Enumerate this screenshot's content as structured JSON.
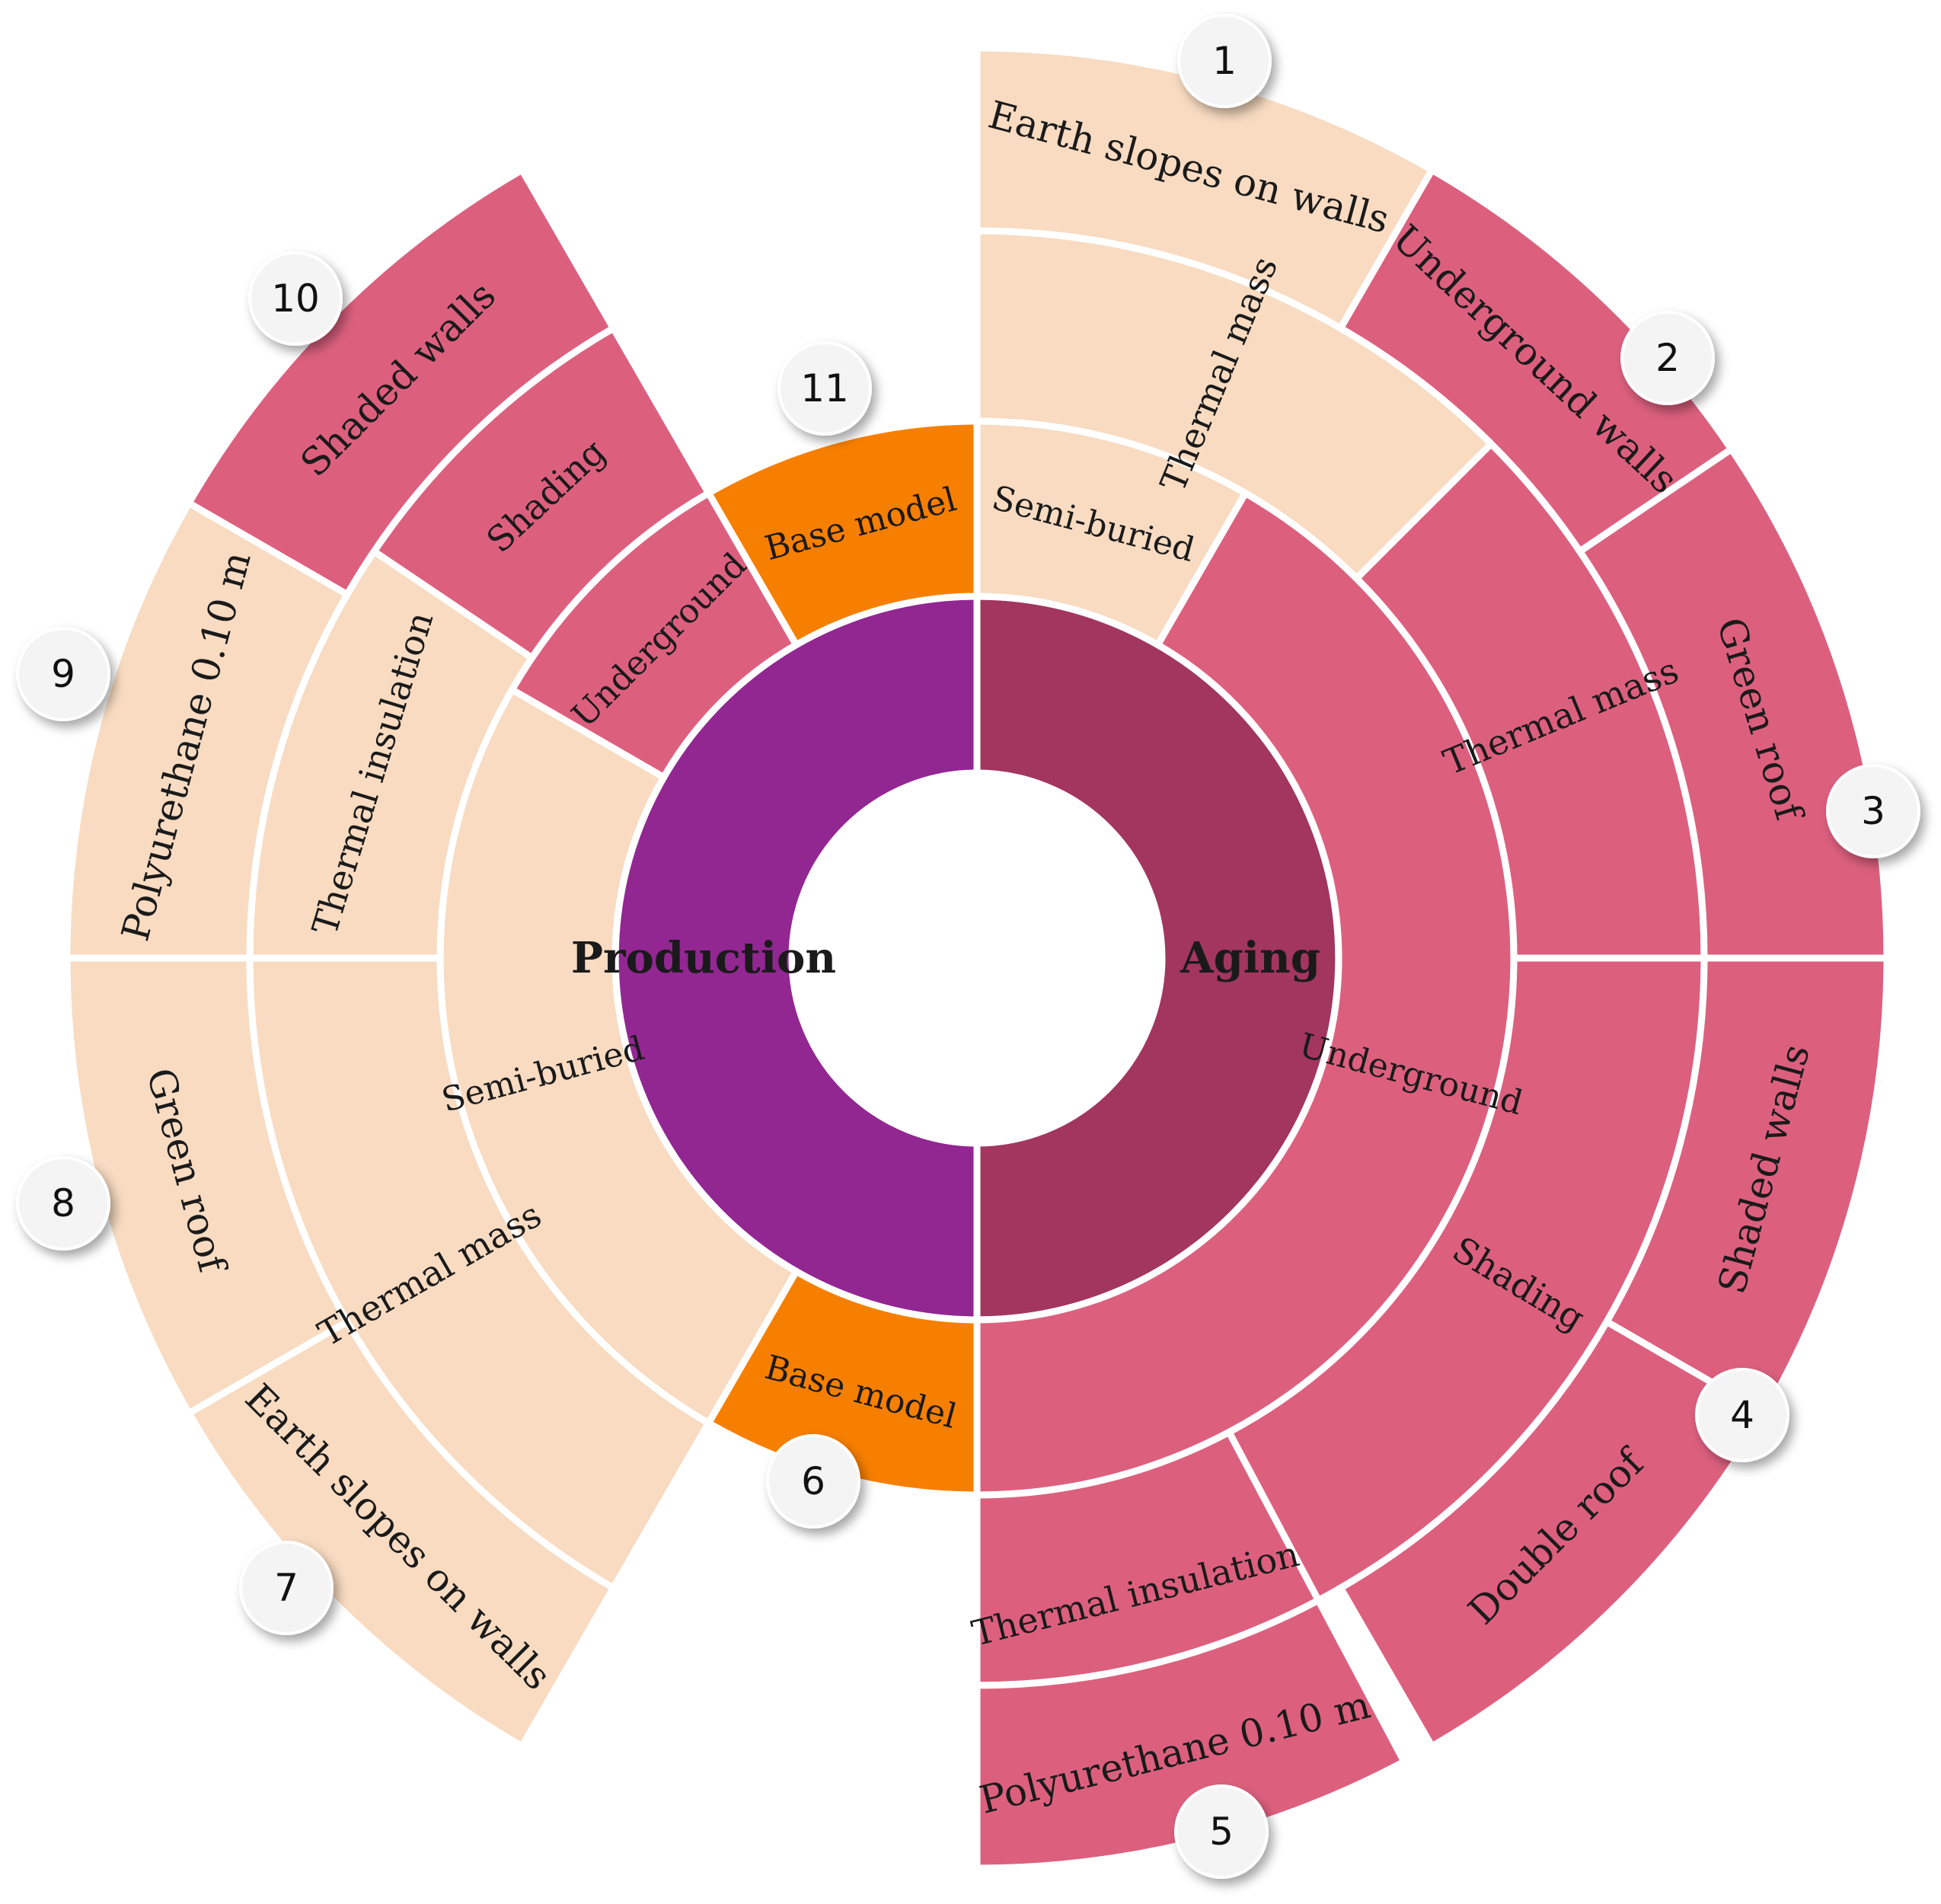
{
  "colors": {
    "production": "#922792",
    "aging": "#a2365f",
    "base": "#f77f00",
    "pink": "#dc607e",
    "peach": "#f8dbc1"
  },
  "rings": [
    [
      {
        "label": "Production",
        "color": "production",
        "bold": true
      },
      {
        "label": "Aging",
        "color": "aging",
        "bold": true
      }
    ],
    [
      {
        "label": "Base model",
        "color": "base"
      },
      {
        "label": "Semi-buried",
        "color": "peach"
      },
      {
        "label": "Underground",
        "color": "pink"
      },
      {
        "label": "Base model",
        "color": "base"
      },
      {
        "label": "Semi-buried",
        "color": "peach"
      },
      {
        "label": "Underground",
        "color": "pink"
      }
    ],
    [
      {
        "label": "Thermal mass",
        "color": "peach"
      },
      {
        "label": "Thermal mass",
        "color": "pink"
      },
      {
        "label": "Shading",
        "color": "pink"
      },
      {
        "label": "Thermal insulation",
        "color": "pink"
      },
      {
        "label": "Thermal mass",
        "color": "peach"
      },
      {
        "label": "Thermal insulation",
        "color": "peach"
      },
      {
        "label": "Shading",
        "color": "pink"
      }
    ],
    [
      {
        "label": "Earth slopes on walls",
        "color": "peach"
      },
      {
        "label": "Underground walls",
        "color": "pink"
      },
      {
        "label": "Green roof",
        "color": "pink"
      },
      {
        "label": "Shaded walls",
        "color": "pink"
      },
      {
        "label": "Double roof",
        "color": "pink"
      },
      {
        "label": "Polyurethane 0.10 m",
        "color": "pink"
      },
      {
        "label": "Earth slopes on walls",
        "color": "peach"
      },
      {
        "label": "Green roof",
        "color": "peach"
      },
      {
        "label": "Polyurethane 0.10 m",
        "color": "peach"
      },
      {
        "label": "Shaded walls",
        "color": "pink"
      }
    ]
  ],
  "badges": [
    "1",
    "2",
    "3",
    "4",
    "5",
    "6",
    "7",
    "8",
    "9",
    "10",
    "11"
  ]
}
